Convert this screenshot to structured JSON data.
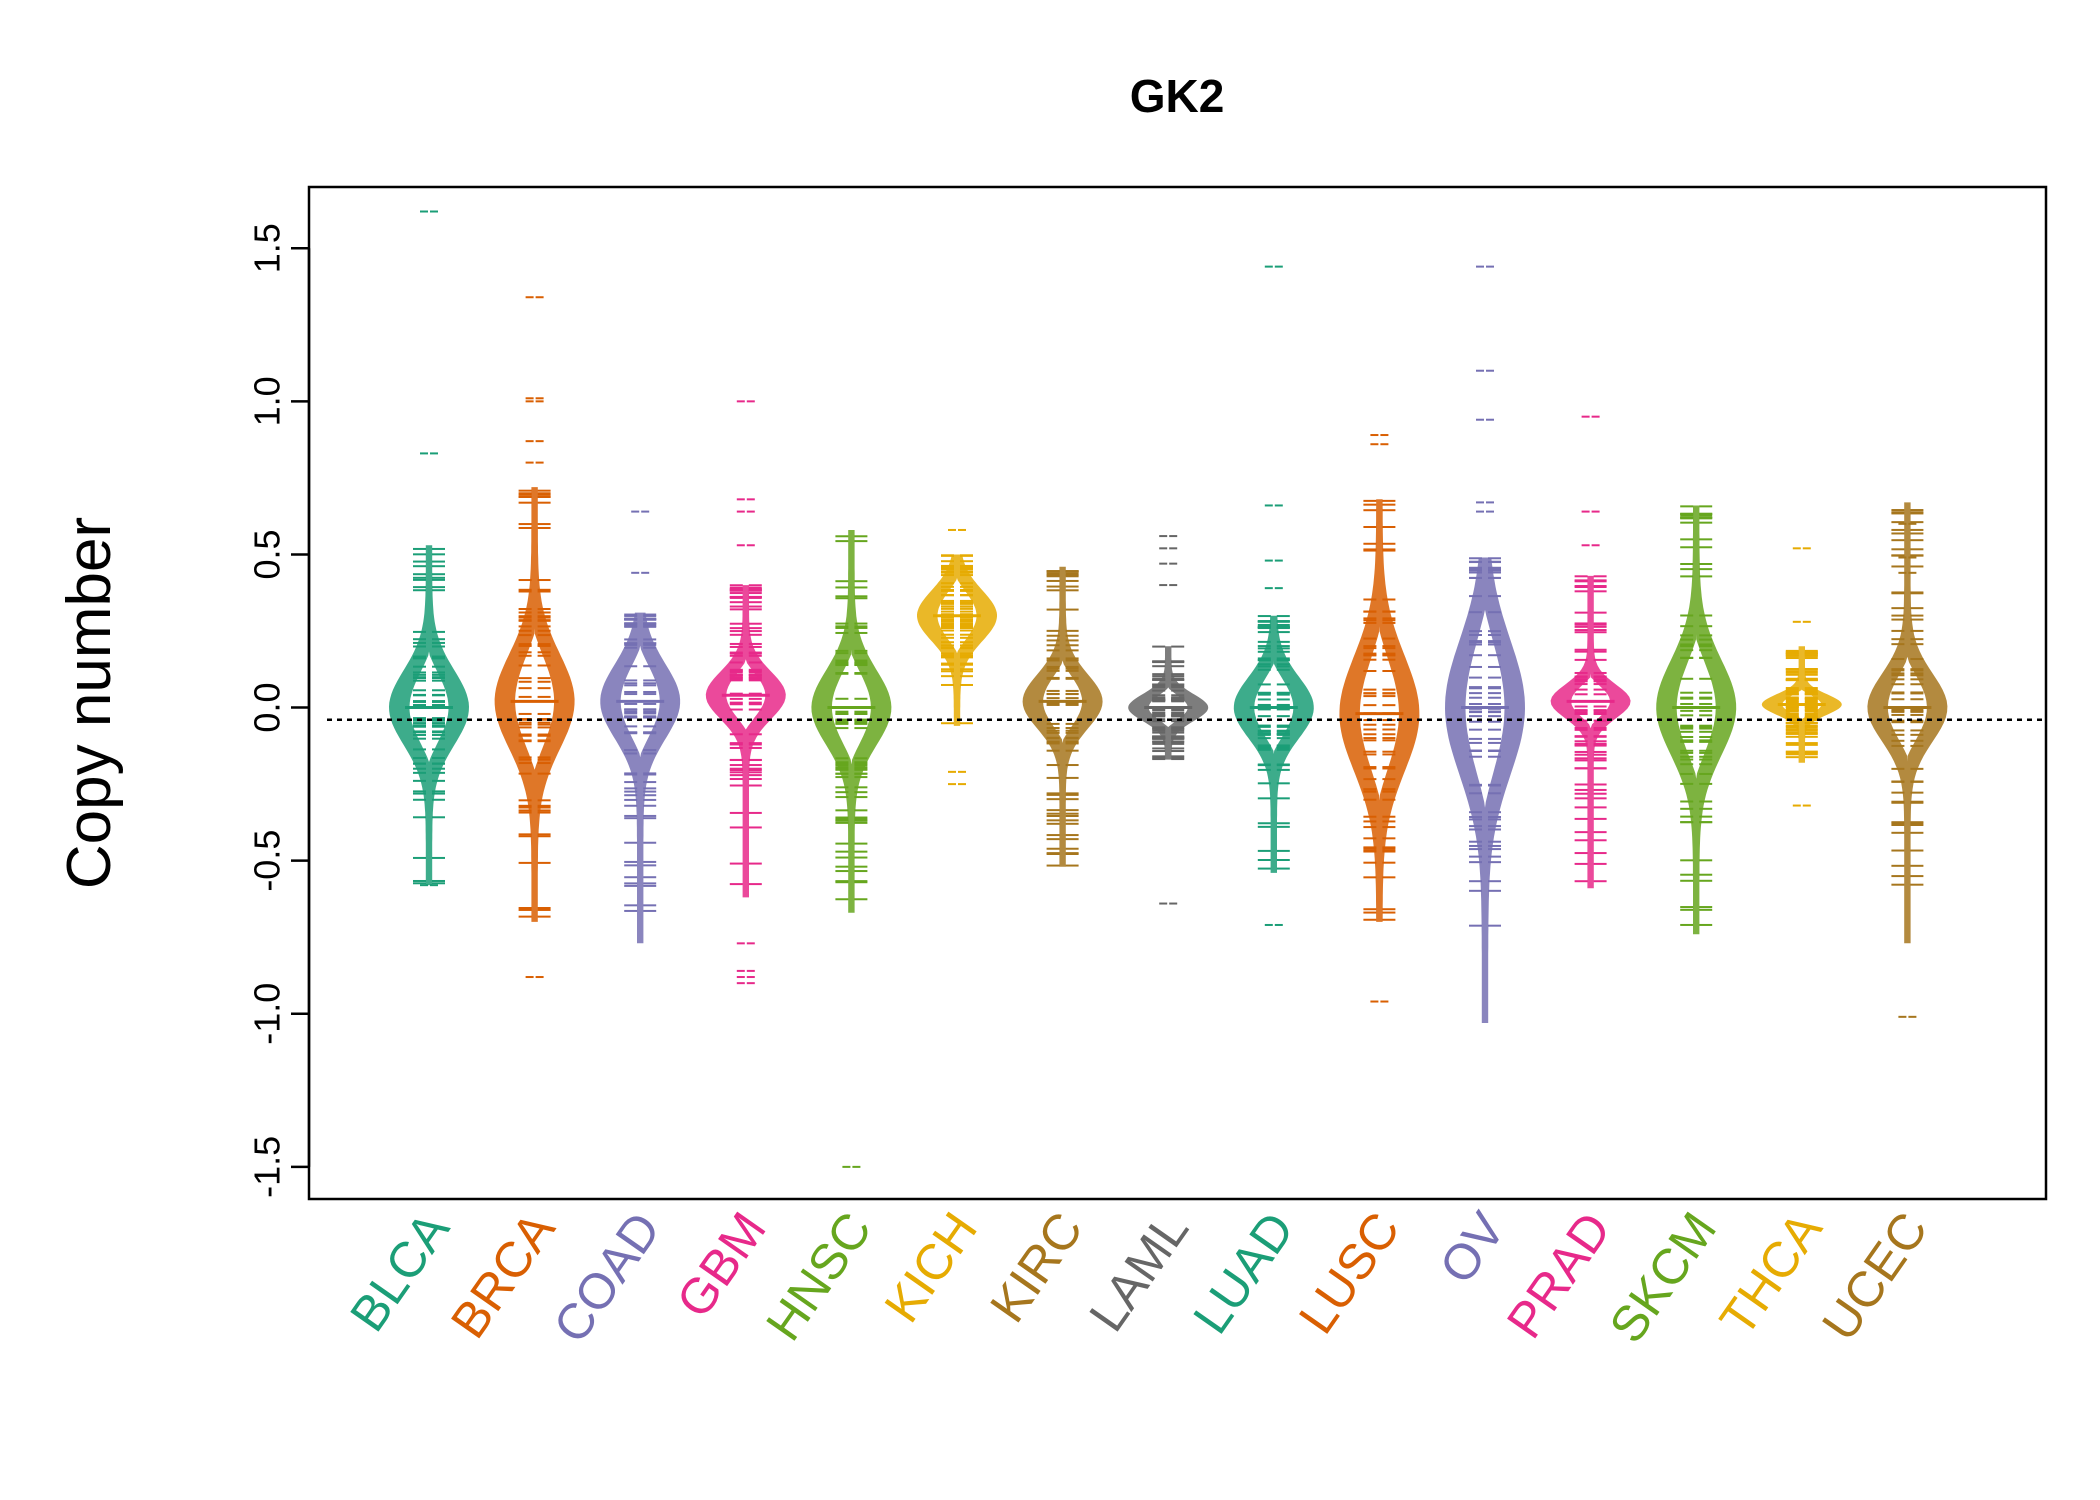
{
  "chart_data": {
    "type": "beanplot",
    "title": "GK2",
    "xlabel": "",
    "ylabel": "Copy number",
    "ylim": [
      -1.6,
      1.7
    ],
    "yticks": [
      -1.5,
      -1.0,
      -0.5,
      0.0,
      0.5,
      1.0,
      1.5
    ],
    "ytick_labels": [
      "-1.5",
      "-1.0",
      "-0.5",
      "0.0",
      "0.5",
      "1.0",
      "1.5"
    ],
    "reference_line": -0.04,
    "categories": [
      "BLCA",
      "BRCA",
      "COAD",
      "GBM",
      "HNSC",
      "KICH",
      "KIRC",
      "LAML",
      "LUAD",
      "LUSC",
      "OV",
      "PRAD",
      "SKCM",
      "THCA",
      "UCEC"
    ],
    "colors": [
      "#1B9E77",
      "#D95F02",
      "#7570B3",
      "#E7298A",
      "#66A61E",
      "#E6AB02",
      "#A6761D",
      "#666666",
      "#1B9E77",
      "#D95F02",
      "#7570B3",
      "#E7298A",
      "#66A61E",
      "#E6AB02",
      "#A6761D"
    ],
    "series": [
      {
        "name": "BLCA",
        "min": -0.58,
        "max": 0.53,
        "center": 0.0,
        "spread": 0.22,
        "outliers": [
          1.62,
          0.83,
          -0.58
        ]
      },
      {
        "name": "BRCA",
        "min": -0.7,
        "max": 0.72,
        "center": 0.02,
        "spread": 0.28,
        "outliers": [
          1.34,
          1.01,
          1.0,
          0.87,
          0.8,
          -0.88
        ]
      },
      {
        "name": "COAD",
        "min": -0.77,
        "max": 0.31,
        "center": 0.02,
        "spread": 0.22,
        "outliers": [
          0.64,
          0.44
        ]
      },
      {
        "name": "GBM",
        "min": -0.62,
        "max": 0.4,
        "center": 0.04,
        "spread": 0.14,
        "outliers": [
          1.0,
          0.68,
          0.64,
          0.53,
          -0.77,
          -0.86,
          -0.88,
          -0.9
        ]
      },
      {
        "name": "HNSC",
        "min": -0.67,
        "max": 0.58,
        "center": 0.0,
        "spread": 0.22,
        "outliers": [
          -1.5
        ]
      },
      {
        "name": "KICH",
        "min": -0.06,
        "max": 0.5,
        "center": 0.3,
        "spread": 0.15,
        "outliers": [
          0.58,
          -0.21,
          -0.25
        ]
      },
      {
        "name": "KIRC",
        "min": -0.52,
        "max": 0.46,
        "center": 0.02,
        "spread": 0.16,
        "outliers": []
      },
      {
        "name": "LAML",
        "min": -0.17,
        "max": 0.2,
        "center": 0.0,
        "spread": 0.08,
        "outliers": [
          0.56,
          0.52,
          0.47,
          0.4,
          -0.64
        ]
      },
      {
        "name": "LUAD",
        "min": -0.54,
        "max": 0.3,
        "center": 0.0,
        "spread": 0.18,
        "outliers": [
          1.44,
          0.66,
          0.48,
          0.39,
          -0.71
        ]
      },
      {
        "name": "LUSC",
        "min": -0.7,
        "max": 0.68,
        "center": -0.02,
        "spread": 0.34,
        "outliers": [
          0.89,
          0.86,
          -0.96
        ]
      },
      {
        "name": "OV",
        "min": -1.03,
        "max": 0.49,
        "center": 0.0,
        "spread": 0.4,
        "outliers": [
          1.44,
          1.1,
          0.94,
          0.67,
          0.64
        ]
      },
      {
        "name": "PRAD",
        "min": -0.59,
        "max": 0.43,
        "center": 0.02,
        "spread": 0.1,
        "outliers": [
          0.95,
          0.64,
          0.53
        ]
      },
      {
        "name": "SKCM",
        "min": -0.74,
        "max": 0.66,
        "center": 0.0,
        "spread": 0.28,
        "outliers": []
      },
      {
        "name": "THCA",
        "min": -0.18,
        "max": 0.2,
        "center": 0.01,
        "spread": 0.06,
        "outliers": [
          0.52,
          0.28,
          -0.32
        ]
      },
      {
        "name": "UCEC",
        "min": -0.77,
        "max": 0.67,
        "center": 0.0,
        "spread": 0.2,
        "outliers": [
          0.6,
          0.49,
          0.44,
          -1.01
        ]
      }
    ]
  }
}
